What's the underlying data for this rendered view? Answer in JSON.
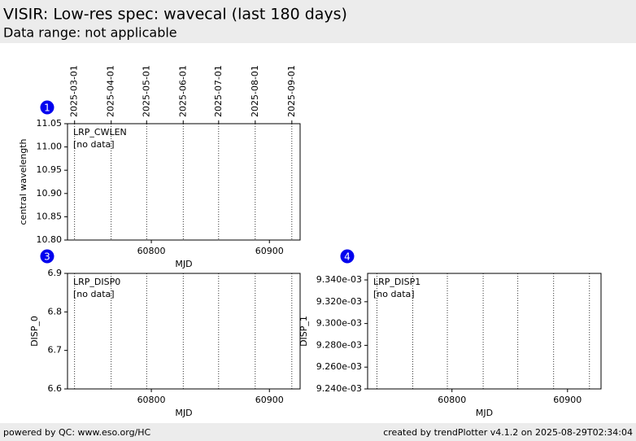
{
  "header": {
    "title": "VISIR: Low-res spec: wavecal (last 180 days)",
    "subtitle": "Data range: not applicable"
  },
  "footer": {
    "left": "powered by QC: www.eso.org/HC",
    "right": "created by trendPlotter v4.1.2 on 2025-08-29T02:34:04"
  },
  "chart_data": [
    {
      "type": "line",
      "badge": "1",
      "label": "LRP_CWLEN",
      "note": "[no data]",
      "ylabel": "central wavelength",
      "xlabel": "MJD",
      "xlim": [
        60729,
        60926
      ],
      "xticks": [
        60800,
        60900
      ],
      "x2ticks": [
        {
          "value": 60735,
          "label": "2025-03-01"
        },
        {
          "value": 60766,
          "label": "2025-04-01"
        },
        {
          "value": 60796,
          "label": "2025-05-01"
        },
        {
          "value": 60827,
          "label": "2025-06-01"
        },
        {
          "value": 60857,
          "label": "2025-07-01"
        },
        {
          "value": 60888,
          "label": "2025-08-01"
        },
        {
          "value": 60919,
          "label": "2025-09-01"
        }
      ],
      "ylim": [
        10.8,
        11.05
      ],
      "yticks": [
        {
          "value": 10.8,
          "label": "10.80"
        },
        10.85,
        {
          "value": 10.9,
          "label": "10.90"
        },
        10.95,
        {
          "value": 11.0,
          "label": "11.00"
        },
        11.05
      ]
    },
    {
      "type": "line",
      "badge": "3",
      "label": "LRP_DISP0",
      "note": "[no data]",
      "ylabel": "DISP_0",
      "xlabel": "MJD",
      "xlim": [
        60729,
        60926
      ],
      "xticks": [
        60800,
        60900
      ],
      "ylim": [
        6.6,
        6.9
      ],
      "yticks": [
        6.6,
        6.7,
        6.8,
        6.9
      ]
    },
    {
      "type": "line",
      "badge": "4",
      "label": "LRP_DISP1",
      "note": "[no data]",
      "ylabel": "DISP_1",
      "xlabel": "MJD",
      "xlim": [
        60727,
        60929
      ],
      "xticks": [
        60800,
        60900
      ],
      "ylim": [
        0.00924,
        0.009346
      ],
      "yticks": [
        {
          "value": 0.00924,
          "label": "9.240e-03"
        },
        {
          "value": 0.00926,
          "label": "9.260e-03"
        },
        {
          "value": 0.00928,
          "label": "9.280e-03"
        },
        {
          "value": 0.0093,
          "label": "9.300e-03"
        },
        {
          "value": 0.00932,
          "label": "9.320e-03"
        },
        {
          "value": 0.00934,
          "label": "9.340e-03"
        }
      ]
    }
  ]
}
